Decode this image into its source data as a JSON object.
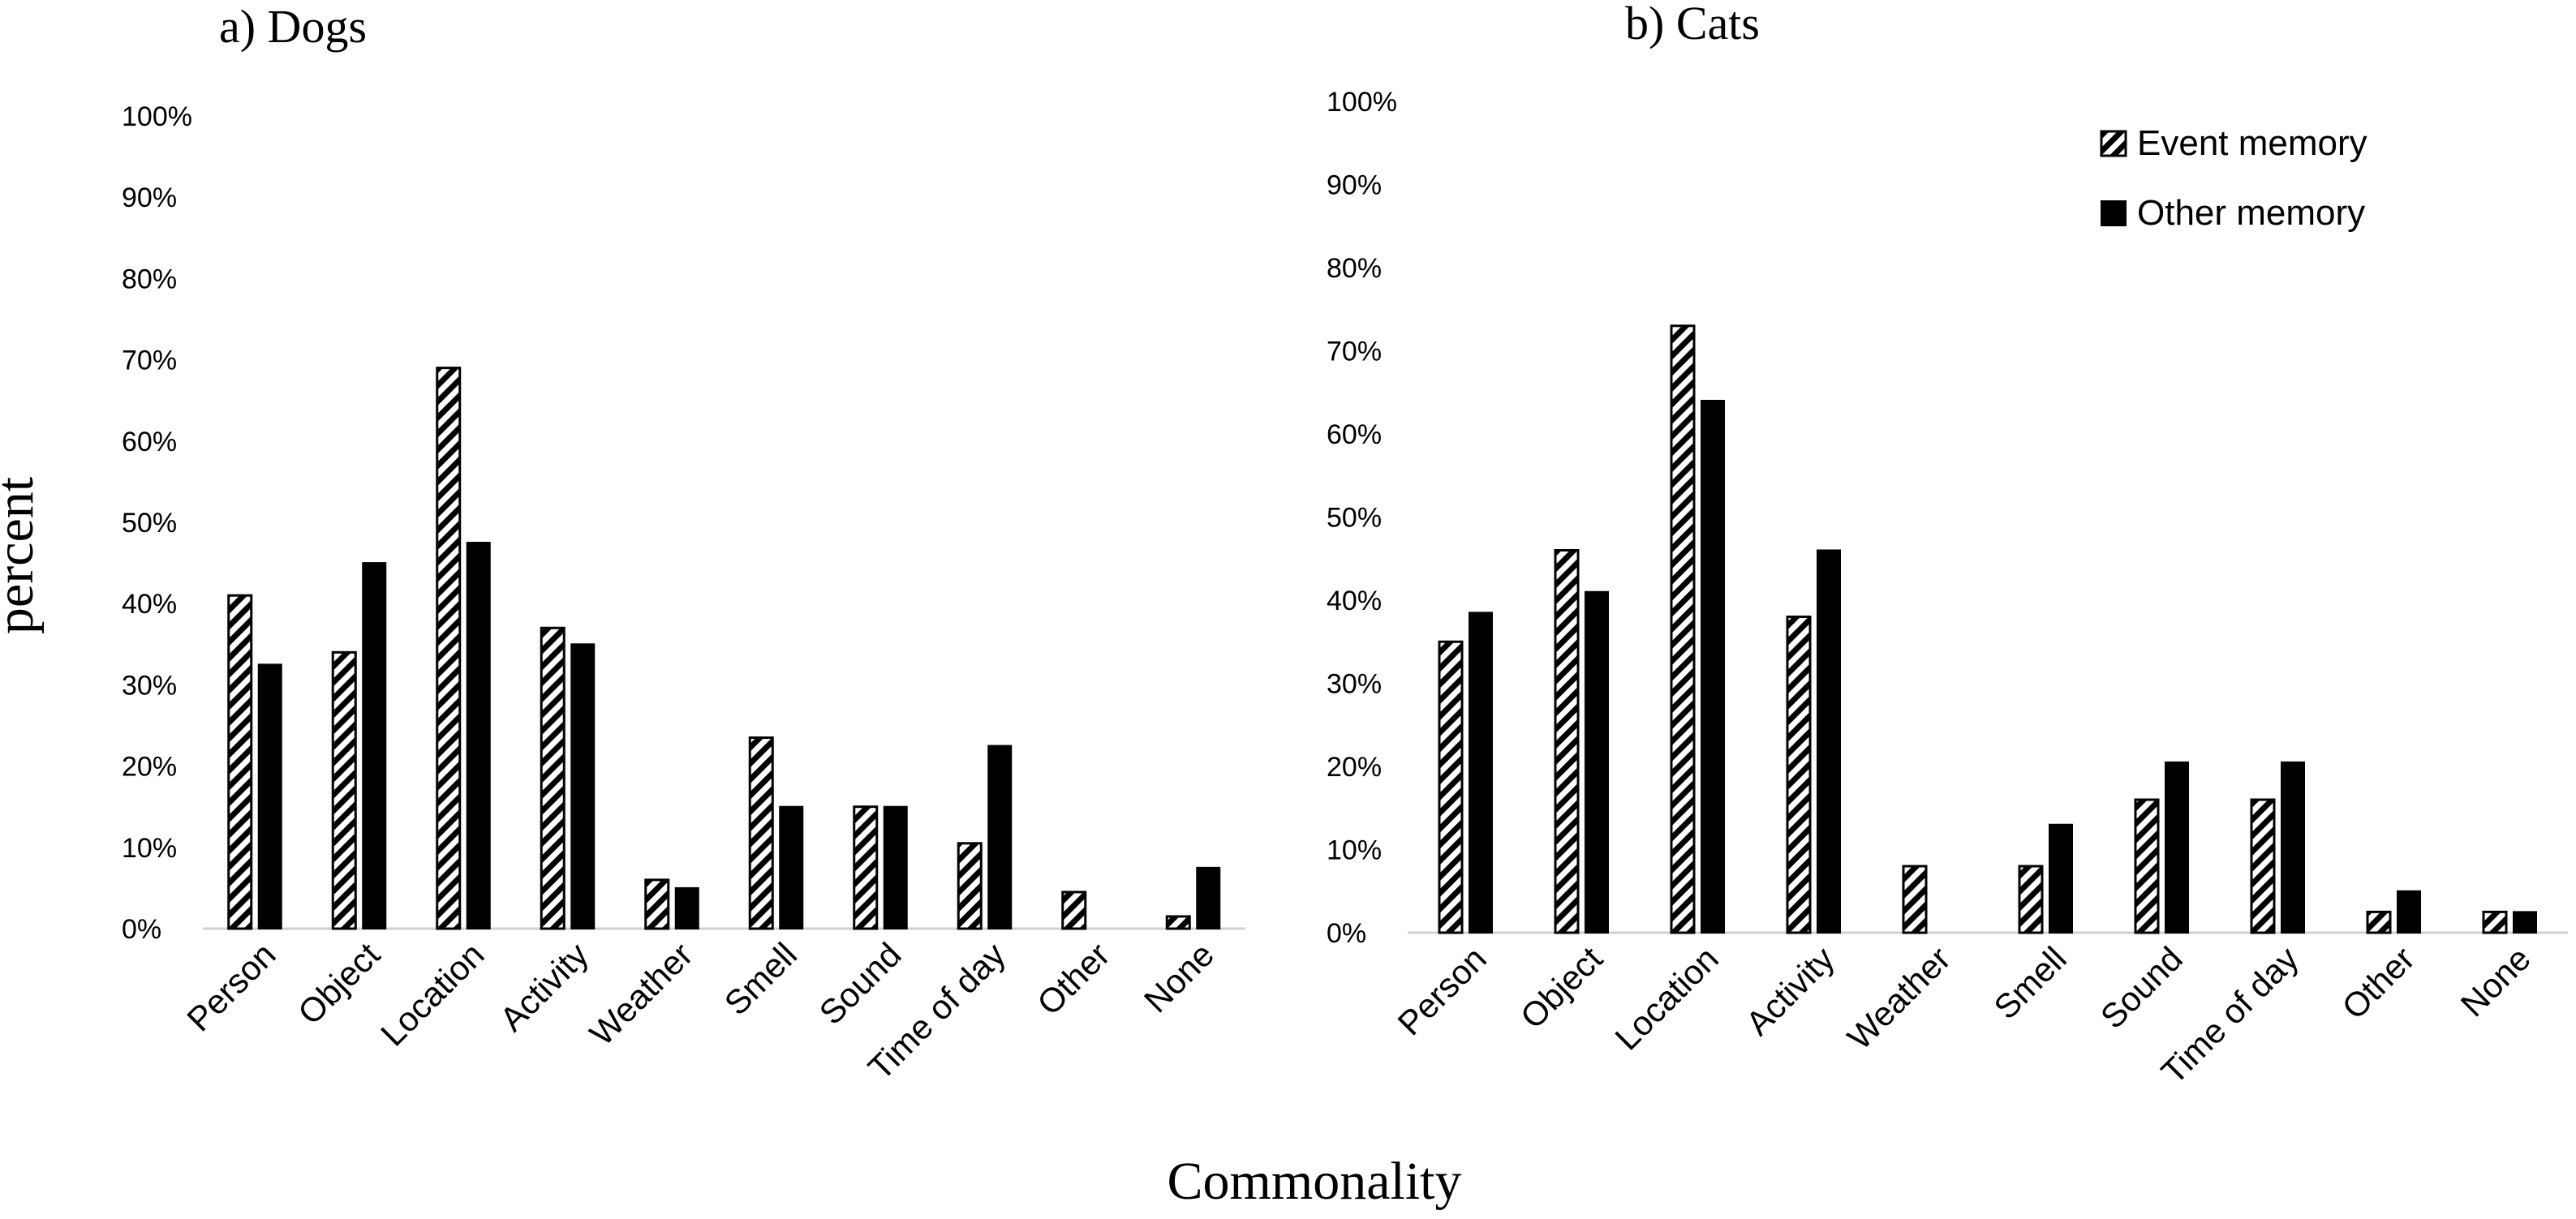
{
  "figure": {
    "y_axis_label": "percent",
    "x_axis_label": "Commonality"
  },
  "legend": {
    "event": "Event memory",
    "other": "Other memory"
  },
  "chart_data": [
    {
      "type": "bar",
      "title": "a) Dogs",
      "categories": [
        "Person",
        "Object",
        "Location",
        "Activity",
        "Weather",
        "Smell",
        "Sound",
        "Time of day",
        "Other",
        "None"
      ],
      "series": [
        {
          "name": "Event memory",
          "values": [
            41,
            34,
            69,
            37,
            6,
            23.5,
            15,
            10.5,
            4.5,
            1.5
          ]
        },
        {
          "name": "Other memory",
          "values": [
            32.5,
            45,
            47.5,
            35,
            5,
            15,
            15,
            22.5,
            0,
            7.5
          ]
        }
      ],
      "yticks": [
        "0%",
        "10%",
        "20%",
        "30%",
        "40%",
        "50%",
        "60%",
        "70%",
        "80%",
        "90%",
        "100%"
      ],
      "ylim": [
        0,
        100
      ],
      "grid": false,
      "legend": "none"
    },
    {
      "type": "bar",
      "title": "b) Cats",
      "categories": [
        "Person",
        "Object",
        "Location",
        "Activity",
        "Weather",
        "Smell",
        "Sound",
        "Time of day",
        "Other",
        "None"
      ],
      "series": [
        {
          "name": "Event memory",
          "values": [
            35,
            46,
            73,
            38,
            8,
            8,
            16,
            16,
            2.5,
            2.5
          ]
        },
        {
          "name": "Other memory",
          "values": [
            38.5,
            41,
            64,
            46,
            0,
            13,
            20.5,
            20.5,
            5,
            2.5
          ]
        }
      ],
      "yticks": [
        "0%",
        "10%",
        "20%",
        "30%",
        "40%",
        "50%",
        "60%",
        "70%",
        "80%",
        "90%",
        "100%"
      ],
      "ylim": [
        0,
        100
      ],
      "grid": false,
      "legend": "top-right"
    }
  ]
}
